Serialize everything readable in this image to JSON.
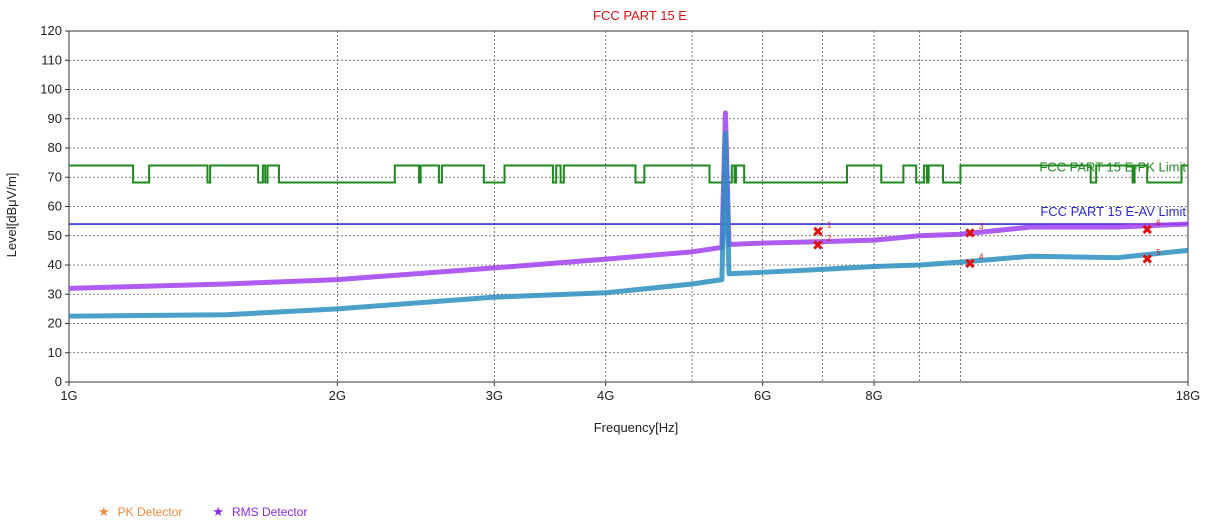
{
  "chart_data": {
    "type": "line",
    "title": "FCC PART 15 E",
    "xlabel": "Frequency[Hz]",
    "ylabel": "Level[dBμV/m]",
    "x_scale": "log",
    "xlim": [
      1000000000,
      18000000000
    ],
    "ylim": [
      0,
      120
    ],
    "grid": true,
    "x_ticks": [
      {
        "value": 1000000000,
        "label": "1G"
      },
      {
        "value": 2000000000,
        "label": "2G"
      },
      {
        "value": 3000000000,
        "label": "3G"
      },
      {
        "value": 4000000000,
        "label": "4G"
      },
      {
        "value": 6000000000,
        "label": "6G"
      },
      {
        "value": 8000000000,
        "label": "8G"
      },
      {
        "value": 18000000000,
        "label": "18G"
      }
    ],
    "x_gridlines": [
      2000000000,
      3000000000,
      4000000000,
      5000000000,
      6000000000,
      7000000000,
      8000000000,
      9000000000,
      10000000000
    ],
    "y_ticks": [
      0,
      10,
      20,
      30,
      40,
      50,
      60,
      70,
      80,
      90,
      100,
      110,
      120
    ],
    "limits": [
      {
        "name": "FCC PART 15 E-PK Limit",
        "color": "#1e8a1e",
        "values": [
          74,
          68.2
        ],
        "segments": [
          [
            1000000000,
            74
          ],
          [
            1180000000,
            68.2
          ],
          [
            1230000000,
            74
          ],
          [
            1430000000,
            68.2
          ],
          [
            1440000000,
            74
          ],
          [
            1630000000,
            68.2
          ],
          [
            1650000000,
            74
          ],
          [
            1660000000,
            68.2
          ],
          [
            1670000000,
            74
          ],
          [
            1720000000,
            68.2
          ],
          [
            2320000000,
            74
          ],
          [
            2470000000,
            68.2
          ],
          [
            2480000000,
            74
          ],
          [
            2600000000,
            68.2
          ],
          [
            2620000000,
            74
          ],
          [
            2920000000,
            68.2
          ],
          [
            3080000000,
            74
          ],
          [
            3490000000,
            68.2
          ],
          [
            3520000000,
            74
          ],
          [
            3560000000,
            68.2
          ],
          [
            3590000000,
            74
          ],
          [
            4320000000,
            68.2
          ],
          [
            4420000000,
            74
          ],
          [
            5230000000,
            68.2
          ],
          [
            5540000000,
            74
          ],
          [
            5580000000,
            68.2
          ],
          [
            5600000000,
            74
          ],
          [
            5720000000,
            68.2
          ],
          [
            7460000000,
            74
          ],
          [
            8150000000,
            68.2
          ],
          [
            8630000000,
            74
          ],
          [
            8920000000,
            68.2
          ],
          [
            9100000000,
            74
          ],
          [
            9170000000,
            68.2
          ],
          [
            9210000000,
            74
          ],
          [
            9560000000,
            68.2
          ],
          [
            10000000000,
            74
          ],
          [
            14000000000,
            68.2
          ],
          [
            14200000000,
            74
          ],
          [
            15600000000,
            68.2
          ],
          [
            15680000000,
            74
          ],
          [
            16200000000,
            68.2
          ],
          [
            17700000000,
            74
          ],
          [
            18000000000,
            74
          ]
        ]
      },
      {
        "name": "FCC PART 15 E-AV Limit",
        "color": "#2b2bd6",
        "values": [
          54
        ]
      }
    ],
    "series": [
      {
        "name": "PK Detector",
        "color": "#a040ee",
        "points": [
          [
            1000000000,
            32
          ],
          [
            1500000000,
            33.5
          ],
          [
            2000000000,
            35
          ],
          [
            3000000000,
            39
          ],
          [
            4000000000,
            42
          ],
          [
            5000000000,
            44.5
          ],
          [
            5400000000,
            46
          ],
          [
            5450000000,
            92
          ],
          [
            5500000000,
            47
          ],
          [
            6000000000,
            47.5
          ],
          [
            7000000000,
            48
          ],
          [
            8000000000,
            48.5
          ],
          [
            9000000000,
            50
          ],
          [
            10000000000,
            50.5
          ],
          [
            12000000000,
            53
          ],
          [
            15000000000,
            53
          ],
          [
            18000000000,
            54
          ]
        ]
      },
      {
        "name": "RMS Detector",
        "color": "#2a8fc0",
        "points": [
          [
            1000000000,
            22.5
          ],
          [
            1500000000,
            23
          ],
          [
            2000000000,
            25
          ],
          [
            3000000000,
            29
          ],
          [
            4000000000,
            30.5
          ],
          [
            5000000000,
            33.5
          ],
          [
            5400000000,
            35
          ],
          [
            5450000000,
            85
          ],
          [
            5500000000,
            37
          ],
          [
            6000000000,
            37.5
          ],
          [
            7000000000,
            38.5
          ],
          [
            8000000000,
            39.5
          ],
          [
            9000000000,
            40
          ],
          [
            10000000000,
            41
          ],
          [
            12000000000,
            43
          ],
          [
            15000000000,
            42.5
          ],
          [
            18000000000,
            45
          ]
        ]
      }
    ],
    "markers": [
      {
        "x": 6920000000,
        "y": 51.5,
        "label": "1"
      },
      {
        "x": 6920000000,
        "y": 46.8,
        "label": "2"
      },
      {
        "x": 10250000000,
        "y": 51,
        "label": "3"
      },
      {
        "x": 10250000000,
        "y": 40.5,
        "label": "4"
      },
      {
        "x": 16200000000,
        "y": 52.2,
        "label": "6"
      },
      {
        "x": 16200000000,
        "y": 42,
        "label": "5"
      }
    ],
    "marker_color": "#dd1111",
    "title_color": "#dd1111",
    "legend": [
      {
        "name": "PK Detector",
        "color": "#f08a3c"
      },
      {
        "name": "RMS Detector",
        "color": "#8a2be2"
      }
    ],
    "legend_position": "bottom-left"
  }
}
